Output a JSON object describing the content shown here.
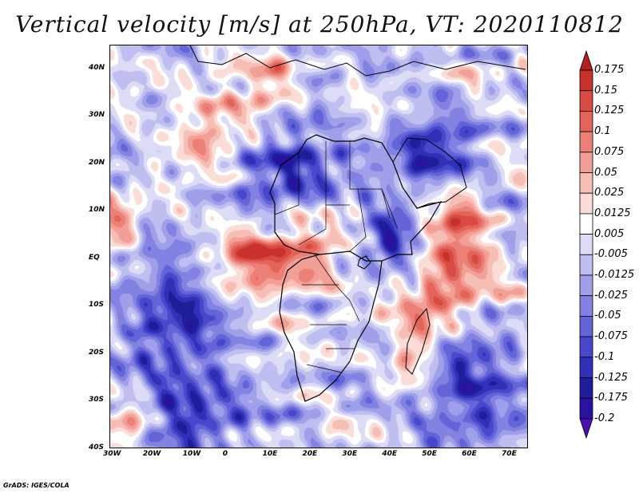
{
  "title": "Vertical velocity [m/s] at 250hPa, VT: 2020110812",
  "credit": "GrADS: IGES/COLA",
  "map": {
    "lon_range": [
      -30,
      75
    ],
    "lat_range": [
      -40,
      45
    ],
    "lon_ticks": [
      {
        "value": -30,
        "label": "30W"
      },
      {
        "value": -20,
        "label": "20W"
      },
      {
        "value": -10,
        "label": "10W"
      },
      {
        "value": 0,
        "label": "0"
      },
      {
        "value": 10,
        "label": "10E"
      },
      {
        "value": 20,
        "label": "20E"
      },
      {
        "value": 30,
        "label": "30E"
      },
      {
        "value": 40,
        "label": "40E"
      },
      {
        "value": 50,
        "label": "50E"
      },
      {
        "value": 60,
        "label": "60E"
      },
      {
        "value": 70,
        "label": "70E"
      }
    ],
    "lat_ticks": [
      {
        "value": 40,
        "label": "40N"
      },
      {
        "value": 30,
        "label": "30N"
      },
      {
        "value": 20,
        "label": "20N"
      },
      {
        "value": 10,
        "label": "10N"
      },
      {
        "value": 0,
        "label": "EQ"
      },
      {
        "value": -10,
        "label": "10S"
      },
      {
        "value": -20,
        "label": "20S"
      },
      {
        "value": -30,
        "label": "30S"
      },
      {
        "value": -40,
        "label": "40S"
      }
    ]
  },
  "colorbar": {
    "levels": [
      "0.175",
      "0.15",
      "0.125",
      "0.1",
      "0.075",
      "0.05",
      "0.025",
      "0.0125",
      "0.005",
      "-0.005",
      "-0.0125",
      "-0.025",
      "-0.05",
      "-0.075",
      "-0.1",
      "-0.125",
      "-0.175",
      "-0.2"
    ],
    "colors": [
      "#b41f1f",
      "#c8322d",
      "#d84a42",
      "#e4645a",
      "#ec8077",
      "#f2a097",
      "#f7beb6",
      "#fbdcd6",
      "#ffffff",
      "#dcdcf6",
      "#bebef0",
      "#a0a0ea",
      "#8282e2",
      "#6464d8",
      "#4848cc",
      "#3030b8",
      "#1e1e9a",
      "#2a12a0",
      "#4a10b0"
    ]
  },
  "anomalies": [
    {
      "name": "warm-band-west-atlantic",
      "lon": -28,
      "lat": 8,
      "r": 4,
      "sign": 1
    },
    {
      "name": "warm-band-gulf-guinea",
      "lon": 5,
      "lat": 0,
      "r": 6,
      "sign": 1
    },
    {
      "name": "warm-congo",
      "lon": 18,
      "lat": 0,
      "r": 7,
      "sign": 1
    },
    {
      "name": "warm-indian-ocean",
      "lon": 57,
      "lat": -1,
      "r": 7,
      "sign": 1
    },
    {
      "name": "warm-arabian-sea",
      "lon": 57,
      "lat": 8,
      "r": 5,
      "sign": 1
    },
    {
      "name": "warm-indian-south",
      "lon": 50,
      "lat": -11,
      "r": 5,
      "sign": 1
    },
    {
      "name": "warm-se-africa",
      "lon": 45,
      "lat": -22,
      "r": 4,
      "sign": 1
    },
    {
      "name": "warm-sw-atlantic",
      "lon": -25,
      "lat": -35,
      "r": 4,
      "sign": 1
    },
    {
      "name": "warm-mediterranean",
      "lon": 10,
      "lat": 37,
      "r": 5,
      "sign": 1
    },
    {
      "name": "warm-sahara-west",
      "lon": -5,
      "lat": 28,
      "r": 6,
      "sign": 1
    },
    {
      "name": "cool-sahara-central",
      "lon": 15,
      "lat": 20,
      "r": 8,
      "sign": -1
    },
    {
      "name": "cool-south-atlantic",
      "lon": -10,
      "lat": -30,
      "r": 9,
      "sign": -1
    },
    {
      "name": "cool-indian-south",
      "lon": 60,
      "lat": -28,
      "r": 9,
      "sign": -1
    },
    {
      "name": "cool-atlantic-mid",
      "lon": -15,
      "lat": -10,
      "r": 8,
      "sign": -1
    },
    {
      "name": "cool-arabia",
      "lon": 50,
      "lat": 22,
      "r": 7,
      "sign": -1
    },
    {
      "name": "cool-horn",
      "lon": 40,
      "lat": 5,
      "r": 5,
      "sign": -1
    }
  ]
}
